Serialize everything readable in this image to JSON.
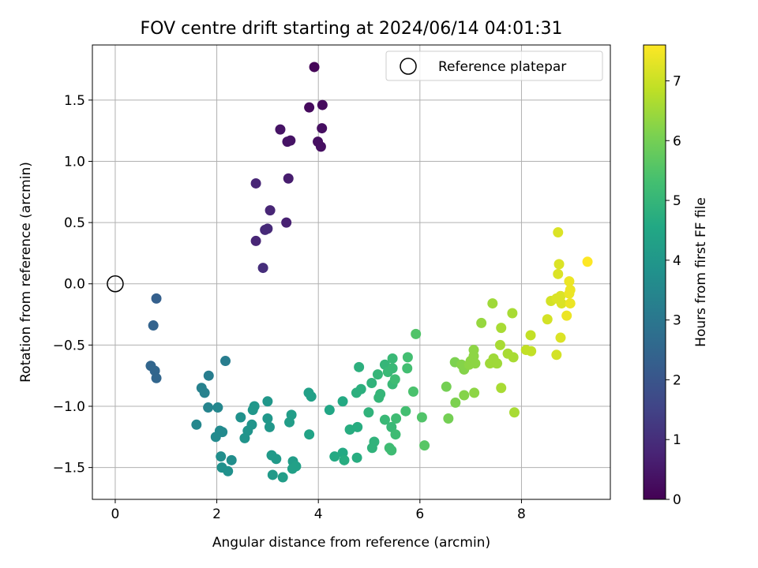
{
  "chart_data": {
    "type": "scatter",
    "title": "FOV centre drift starting at 2024/06/14 04:01:31",
    "xlabel": "Angular distance from reference (arcmin)",
    "ylabel": "Rotation from reference (arcmin)",
    "xlim": [
      -0.45,
      9.75
    ],
    "ylim": [
      -1.76,
      1.95
    ],
    "xticks": [
      "0",
      "2",
      "4",
      "6",
      "8"
    ],
    "yticks": [
      "−1.5",
      "−1.0",
      "−0.5",
      "0.0",
      "0.5",
      "1.0",
      "1.5"
    ],
    "grid": true,
    "legend_position": "top-right",
    "legend": {
      "label": "Reference platepar",
      "marker": "open-circle"
    },
    "reference_point": {
      "x": 0,
      "y": 0
    },
    "colorbar": {
      "label": "Hours from first FF file",
      "colormap": "viridis",
      "range": [
        0,
        7.6
      ],
      "ticks": [
        "0",
        "1",
        "2",
        "3",
        "4",
        "5",
        "6",
        "7"
      ]
    },
    "points": [
      {
        "x": 3.92,
        "y": 1.77,
        "h": 0.1
      },
      {
        "x": 4.08,
        "y": 1.46,
        "h": 0.2
      },
      {
        "x": 3.82,
        "y": 1.44,
        "h": 0.2
      },
      {
        "x": 4.07,
        "y": 1.27,
        "h": 0.3
      },
      {
        "x": 3.25,
        "y": 1.26,
        "h": 0.4
      },
      {
        "x": 3.45,
        "y": 1.17,
        "h": 0.4
      },
      {
        "x": 3.39,
        "y": 1.16,
        "h": 0.4
      },
      {
        "x": 3.99,
        "y": 1.16,
        "h": 0.3
      },
      {
        "x": 4.05,
        "y": 1.12,
        "h": 0.3
      },
      {
        "x": 3.41,
        "y": 0.86,
        "h": 0.6
      },
      {
        "x": 2.77,
        "y": 0.82,
        "h": 0.8
      },
      {
        "x": 3.05,
        "y": 0.6,
        "h": 0.8
      },
      {
        "x": 3.37,
        "y": 0.5,
        "h": 0.7
      },
      {
        "x": 3.0,
        "y": 0.45,
        "h": 0.9
      },
      {
        "x": 2.95,
        "y": 0.44,
        "h": 0.9
      },
      {
        "x": 2.77,
        "y": 0.35,
        "h": 0.8
      },
      {
        "x": 2.91,
        "y": 0.13,
        "h": 1.0
      },
      {
        "x": 0.81,
        "y": -0.12,
        "h": 2.3
      },
      {
        "x": 0.75,
        "y": -0.34,
        "h": 2.4
      },
      {
        "x": 0.7,
        "y": -0.67,
        "h": 2.5
      },
      {
        "x": 0.78,
        "y": -0.71,
        "h": 2.5
      },
      {
        "x": 0.81,
        "y": -0.77,
        "h": 2.5
      },
      {
        "x": 2.17,
        "y": -0.63,
        "h": 3.2
      },
      {
        "x": 1.84,
        "y": -0.75,
        "h": 3.2
      },
      {
        "x": 1.7,
        "y": -0.85,
        "h": 3.3
      },
      {
        "x": 1.76,
        "y": -0.89,
        "h": 3.3
      },
      {
        "x": 1.83,
        "y": -1.01,
        "h": 3.4
      },
      {
        "x": 2.02,
        "y": -1.01,
        "h": 3.5
      },
      {
        "x": 1.6,
        "y": -1.15,
        "h": 3.5
      },
      {
        "x": 2.06,
        "y": -1.2,
        "h": 3.6
      },
      {
        "x": 2.11,
        "y": -1.21,
        "h": 3.6
      },
      {
        "x": 1.98,
        "y": -1.25,
        "h": 3.6
      },
      {
        "x": 2.08,
        "y": -1.41,
        "h": 3.7
      },
      {
        "x": 2.29,
        "y": -1.44,
        "h": 3.7
      },
      {
        "x": 2.1,
        "y": -1.5,
        "h": 3.8
      },
      {
        "x": 2.22,
        "y": -1.53,
        "h": 3.8
      },
      {
        "x": 2.47,
        "y": -1.09,
        "h": 3.8
      },
      {
        "x": 2.69,
        "y": -1.15,
        "h": 3.9
      },
      {
        "x": 2.61,
        "y": -1.2,
        "h": 3.9
      },
      {
        "x": 2.55,
        "y": -1.26,
        "h": 3.9
      },
      {
        "x": 2.74,
        "y": -1.0,
        "h": 4.0
      },
      {
        "x": 2.71,
        "y": -1.03,
        "h": 4.0
      },
      {
        "x": 3.0,
        "y": -0.96,
        "h": 4.0
      },
      {
        "x": 3.0,
        "y": -1.1,
        "h": 4.0
      },
      {
        "x": 3.04,
        "y": -1.17,
        "h": 4.0
      },
      {
        "x": 3.08,
        "y": -1.4,
        "h": 4.1
      },
      {
        "x": 3.17,
        "y": -1.43,
        "h": 4.1
      },
      {
        "x": 3.1,
        "y": -1.56,
        "h": 4.1
      },
      {
        "x": 3.3,
        "y": -1.58,
        "h": 4.2
      },
      {
        "x": 3.47,
        "y": -1.07,
        "h": 4.2
      },
      {
        "x": 3.43,
        "y": -1.13,
        "h": 4.2
      },
      {
        "x": 3.5,
        "y": -1.45,
        "h": 4.2
      },
      {
        "x": 3.56,
        "y": -1.49,
        "h": 4.3
      },
      {
        "x": 3.49,
        "y": -1.51,
        "h": 4.3
      },
      {
        "x": 3.81,
        "y": -0.89,
        "h": 4.3
      },
      {
        "x": 3.86,
        "y": -0.92,
        "h": 4.3
      },
      {
        "x": 3.82,
        "y": -1.23,
        "h": 4.4
      },
      {
        "x": 4.22,
        "y": -1.03,
        "h": 4.5
      },
      {
        "x": 4.48,
        "y": -0.96,
        "h": 4.6
      },
      {
        "x": 4.32,
        "y": -1.41,
        "h": 4.6
      },
      {
        "x": 4.48,
        "y": -1.38,
        "h": 4.6
      },
      {
        "x": 4.51,
        "y": -1.44,
        "h": 4.7
      },
      {
        "x": 4.62,
        "y": -1.19,
        "h": 4.7
      },
      {
        "x": 4.77,
        "y": -1.17,
        "h": 4.7
      },
      {
        "x": 4.76,
        "y": -1.42,
        "h": 4.7
      },
      {
        "x": 4.8,
        "y": -0.68,
        "h": 4.8
      },
      {
        "x": 4.75,
        "y": -0.89,
        "h": 4.8
      },
      {
        "x": 4.84,
        "y": -0.86,
        "h": 4.8
      },
      {
        "x": 4.99,
        "y": -1.05,
        "h": 4.9
      },
      {
        "x": 5.05,
        "y": -0.81,
        "h": 4.9
      },
      {
        "x": 5.1,
        "y": -1.29,
        "h": 4.9
      },
      {
        "x": 5.06,
        "y": -1.34,
        "h": 4.9
      },
      {
        "x": 5.17,
        "y": -0.74,
        "h": 5.0
      },
      {
        "x": 5.22,
        "y": -0.9,
        "h": 5.0
      },
      {
        "x": 5.19,
        "y": -0.93,
        "h": 5.0
      },
      {
        "x": 5.31,
        "y": -0.66,
        "h": 5.0
      },
      {
        "x": 5.37,
        "y": -0.72,
        "h": 5.1
      },
      {
        "x": 5.31,
        "y": -1.11,
        "h": 5.1
      },
      {
        "x": 5.46,
        "y": -0.61,
        "h": 5.1
      },
      {
        "x": 5.46,
        "y": -0.69,
        "h": 5.1
      },
      {
        "x": 5.46,
        "y": -0.82,
        "h": 5.1
      },
      {
        "x": 5.44,
        "y": -1.17,
        "h": 5.1
      },
      {
        "x": 5.4,
        "y": -1.34,
        "h": 5.2
      },
      {
        "x": 5.44,
        "y": -1.36,
        "h": 5.2
      },
      {
        "x": 5.51,
        "y": -0.78,
        "h": 5.2
      },
      {
        "x": 5.53,
        "y": -1.1,
        "h": 5.2
      },
      {
        "x": 5.52,
        "y": -1.23,
        "h": 5.2
      },
      {
        "x": 5.76,
        "y": -0.6,
        "h": 5.3
      },
      {
        "x": 5.75,
        "y": -0.69,
        "h": 5.3
      },
      {
        "x": 5.72,
        "y": -1.04,
        "h": 5.3
      },
      {
        "x": 5.87,
        "y": -0.88,
        "h": 5.4
      },
      {
        "x": 5.92,
        "y": -0.41,
        "h": 5.5
      },
      {
        "x": 6.04,
        "y": -1.09,
        "h": 5.5
      },
      {
        "x": 6.09,
        "y": -1.32,
        "h": 5.6
      },
      {
        "x": 6.52,
        "y": -0.84,
        "h": 6.0
      },
      {
        "x": 6.56,
        "y": -1.1,
        "h": 6.0
      },
      {
        "x": 6.69,
        "y": -0.64,
        "h": 6.1
      },
      {
        "x": 6.7,
        "y": -0.97,
        "h": 6.1
      },
      {
        "x": 6.82,
        "y": -0.66,
        "h": 6.2
      },
      {
        "x": 6.87,
        "y": -0.7,
        "h": 6.2
      },
      {
        "x": 6.87,
        "y": -0.91,
        "h": 6.2
      },
      {
        "x": 6.97,
        "y": -0.66,
        "h": 6.3
      },
      {
        "x": 7.0,
        "y": -0.63,
        "h": 6.3
      },
      {
        "x": 7.06,
        "y": -0.54,
        "h": 6.3
      },
      {
        "x": 7.06,
        "y": -0.59,
        "h": 6.3
      },
      {
        "x": 7.09,
        "y": -0.65,
        "h": 6.3
      },
      {
        "x": 7.07,
        "y": -0.89,
        "h": 6.3
      },
      {
        "x": 7.21,
        "y": -0.32,
        "h": 6.4
      },
      {
        "x": 7.38,
        "y": -0.65,
        "h": 6.5
      },
      {
        "x": 7.43,
        "y": -0.16,
        "h": 6.5
      },
      {
        "x": 7.45,
        "y": -0.61,
        "h": 6.5
      },
      {
        "x": 7.51,
        "y": -0.65,
        "h": 6.5
      },
      {
        "x": 7.52,
        "y": -0.65,
        "h": 6.5
      },
      {
        "x": 7.6,
        "y": -0.36,
        "h": 6.6
      },
      {
        "x": 7.58,
        "y": -0.5,
        "h": 6.6
      },
      {
        "x": 7.6,
        "y": -0.85,
        "h": 6.6
      },
      {
        "x": 7.73,
        "y": -0.57,
        "h": 6.6
      },
      {
        "x": 7.82,
        "y": -0.24,
        "h": 6.6
      },
      {
        "x": 7.84,
        "y": -0.6,
        "h": 6.6
      },
      {
        "x": 7.86,
        "y": -1.05,
        "h": 6.6
      },
      {
        "x": 8.09,
        "y": -0.54,
        "h": 6.9
      },
      {
        "x": 8.18,
        "y": -0.42,
        "h": 6.9
      },
      {
        "x": 8.19,
        "y": -0.55,
        "h": 6.9
      },
      {
        "x": 8.51,
        "y": -0.29,
        "h": 7.1
      },
      {
        "x": 8.58,
        "y": -0.14,
        "h": 7.1
      },
      {
        "x": 8.69,
        "y": -0.58,
        "h": 7.1
      },
      {
        "x": 8.72,
        "y": 0.42,
        "h": 7.2
      },
      {
        "x": 8.74,
        "y": 0.16,
        "h": 7.2
      },
      {
        "x": 8.72,
        "y": 0.08,
        "h": 7.2
      },
      {
        "x": 8.69,
        "y": -0.12,
        "h": 7.2
      },
      {
        "x": 8.77,
        "y": -0.1,
        "h": 7.2
      },
      {
        "x": 8.79,
        "y": -0.16,
        "h": 7.2
      },
      {
        "x": 8.77,
        "y": -0.44,
        "h": 7.2
      },
      {
        "x": 8.94,
        "y": 0.02,
        "h": 7.4
      },
      {
        "x": 8.96,
        "y": -0.05,
        "h": 7.4
      },
      {
        "x": 8.94,
        "y": -0.08,
        "h": 7.4
      },
      {
        "x": 8.96,
        "y": -0.16,
        "h": 7.4
      },
      {
        "x": 8.89,
        "y": -0.26,
        "h": 7.4
      },
      {
        "x": 9.3,
        "y": 0.18,
        "h": 7.6
      }
    ]
  }
}
